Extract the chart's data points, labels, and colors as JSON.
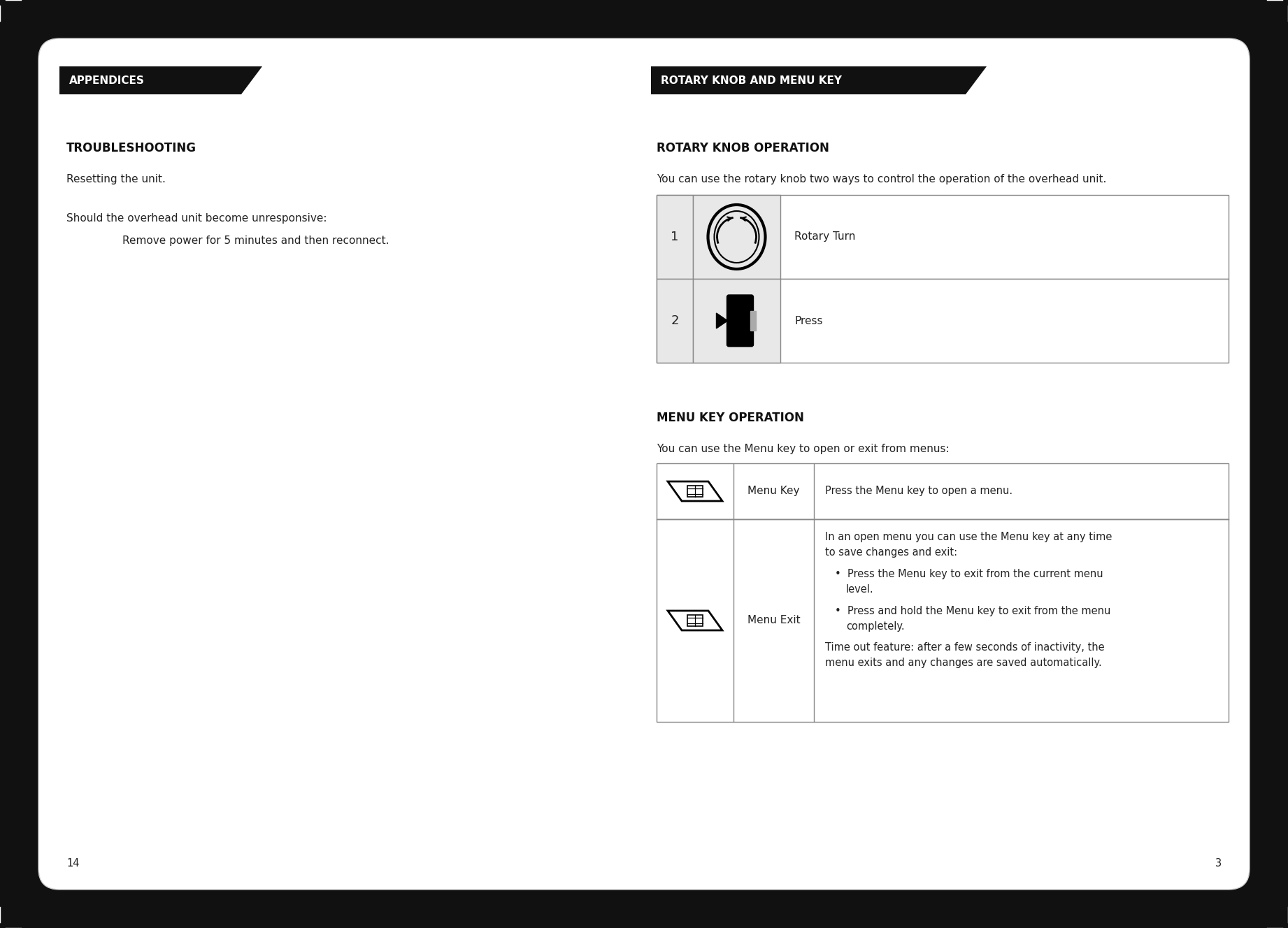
{
  "bg_outer": "#111111",
  "bg_page": "#ffffff",
  "header_bg": "#111111",
  "header_left_text": "APPENDICES",
  "header_right_text": "ROTARY KNOB AND MENU KEY",
  "section1_title": "TROUBLESHOOTING",
  "section1_body1": "Resetting the unit.",
  "section1_body2": "Should the overhead unit become unresponsive:",
  "section1_body3": "Remove power for 5 minutes and then reconnect.",
  "section2_title": "ROTARY KNOB OPERATION",
  "section2_body": "You can use the rotary knob two ways to control the operation of the overhead unit.",
  "row1_num": "1",
  "row1_label": "Rotary Turn",
  "row2_num": "2",
  "row2_label": "Press",
  "section3_title": "MENU KEY OPERATION",
  "section3_body": "You can use the Menu key to open or exit from menus:",
  "menu_row1_label": "Menu Key",
  "menu_row1_text": "Press the Menu key to open a menu.",
  "menu_row2_label": "Menu Exit",
  "menu_row2_text1a": "In an open menu you can use the Menu key at any time",
  "menu_row2_text1b": "to save changes and exit:",
  "menu_row2_bullet1a": "Press the Menu key to exit from the current menu",
  "menu_row2_bullet1b": "level.",
  "menu_row2_bullet2a": "Press and hold the Menu key to exit from the menu",
  "menu_row2_bullet2b": "completely.",
  "menu_row2_text2a": "Time out feature: after a few seconds of inactivity, the",
  "menu_row2_text2b": "menu exits and any changes are saved automatically.",
  "page_num_left": "14",
  "page_num_right": "3",
  "text_color": "#222222",
  "bold_color": "#111111",
  "table_border": "#888888",
  "cell_bg_gray": "#e8e8e8",
  "cell_bg_white": "#ffffff"
}
